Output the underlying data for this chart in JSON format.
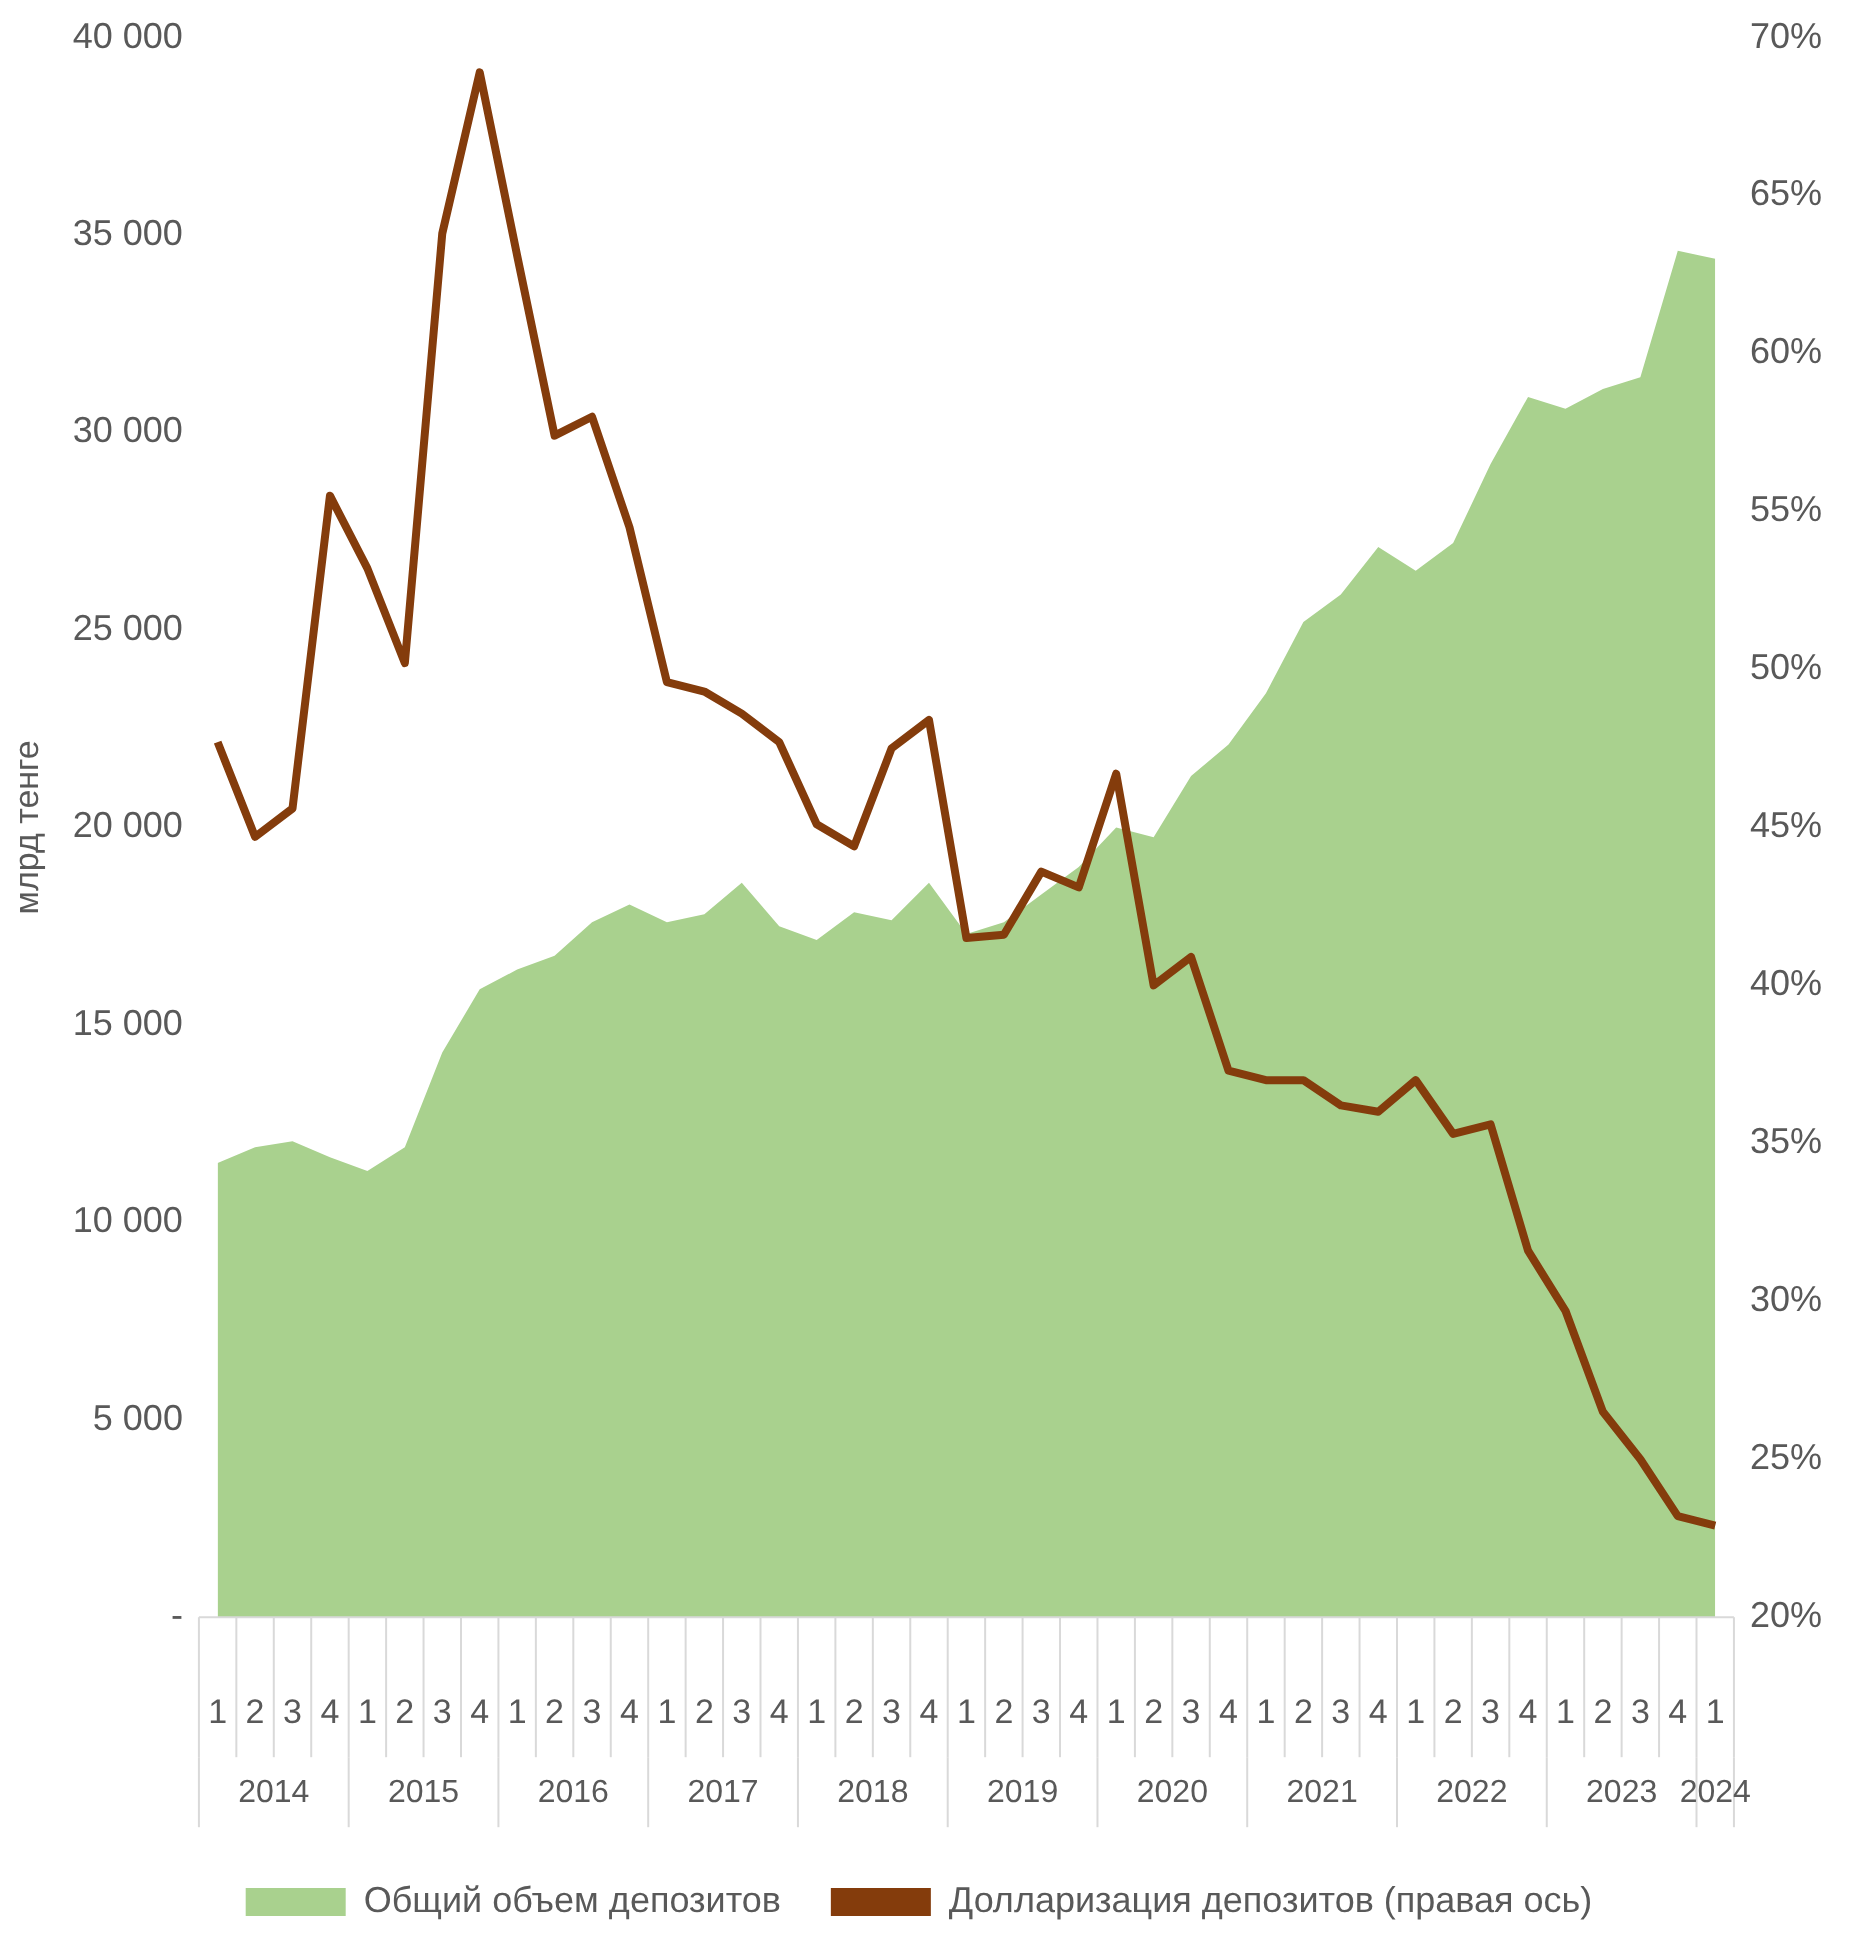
{
  "chart_data": {
    "type": "area",
    "ylabel": "млрд тенге",
    "categories": [
      "1",
      "2",
      "3",
      "4",
      "1",
      "2",
      "3",
      "4",
      "1",
      "2",
      "3",
      "4",
      "1",
      "2",
      "3",
      "4",
      "1",
      "2",
      "3",
      "4",
      "1",
      "2",
      "3",
      "4",
      "1",
      "2",
      "3",
      "4",
      "1",
      "2",
      "3",
      "4",
      "1",
      "2",
      "3",
      "4",
      "1",
      "2",
      "3",
      "4",
      "1"
    ],
    "annotations": [
      "2014",
      "2015",
      "2016",
      "2017",
      "2018",
      "2019",
      "2020",
      "2021",
      "2022",
      "2023",
      "2024"
    ],
    "series": [
      {
        "name": "Общий объем депозитов",
        "color": "#a9d18e",
        "values": [
          11500,
          11900,
          12050,
          11650,
          11300,
          11900,
          14300,
          15900,
          16400,
          16750,
          17600,
          18050,
          17600,
          17800,
          18600,
          17500,
          17150,
          17850,
          17650,
          18600,
          17300,
          17600,
          18300,
          19000,
          20000,
          19750,
          21300,
          22100,
          23400,
          25200,
          25900,
          27100,
          26500,
          27200,
          29200,
          30900,
          30600,
          31100,
          31400,
          34600,
          34400
        ]
      },
      {
        "name": "Долларизация депозитов (правая ось)",
        "type": "line",
        "axis": "y2",
        "color": "#843c0c",
        "values": [
          47.7,
          44.7,
          45.6,
          55.5,
          53.2,
          50.2,
          63.8,
          68.9,
          63.1,
          57.4,
          58.0,
          54.5,
          49.6,
          49.3,
          48.6,
          47.7,
          45.1,
          44.4,
          47.5,
          48.4,
          41.5,
          41.6,
          43.6,
          43.1,
          46.7,
          40.0,
          40.9,
          37.3,
          37.0,
          37.0,
          36.2,
          36.0,
          37.0,
          35.3,
          35.6,
          31.6,
          29.7,
          26.5,
          25.0,
          23.2,
          22.9
        ]
      }
    ],
    "ylim": [
      0,
      40000
    ],
    "yticks": [
      {
        "value": 0,
        "label": "-"
      },
      {
        "value": 5000,
        "label": "5 000"
      },
      {
        "value": 10000,
        "label": "10 000"
      },
      {
        "value": 15000,
        "label": "15 000"
      },
      {
        "value": 20000,
        "label": "20 000"
      },
      {
        "value": 25000,
        "label": "25 000"
      },
      {
        "value": 30000,
        "label": "30 000"
      },
      {
        "value": 35000,
        "label": "35 000"
      },
      {
        "value": 40000,
        "label": "40 000"
      }
    ],
    "y2lim": [
      20,
      70
    ],
    "y2ticks": [
      {
        "value": 20,
        "label": "20%"
      },
      {
        "value": 25,
        "label": "25%"
      },
      {
        "value": 30,
        "label": "30%"
      },
      {
        "value": 35,
        "label": "35%"
      },
      {
        "value": 40,
        "label": "40%"
      },
      {
        "value": 45,
        "label": "45%"
      },
      {
        "value": 50,
        "label": "50%"
      },
      {
        "value": 55,
        "label": "55%"
      },
      {
        "value": 60,
        "label": "60%"
      },
      {
        "value": 65,
        "label": "65%"
      },
      {
        "value": 70,
        "label": "70%"
      }
    ],
    "grid": false,
    "legend": "bottom",
    "marker": "none",
    "line_style": "solid"
  }
}
